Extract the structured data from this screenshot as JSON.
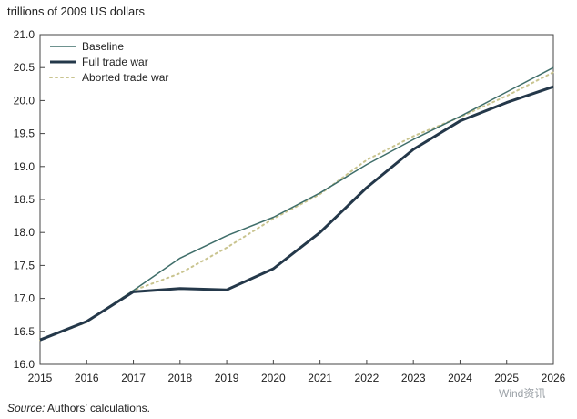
{
  "chart_data": {
    "type": "line",
    "ylabel": "trillions of 2009 US dollars",
    "x": [
      2015,
      2016,
      2017,
      2018,
      2019,
      2020,
      2021,
      2022,
      2023,
      2024,
      2025,
      2026
    ],
    "ylim": [
      16.0,
      21.0
    ],
    "yticks": [
      "16.0",
      "16.5",
      "17.0",
      "17.5",
      "18.0",
      "18.5",
      "19.0",
      "19.5",
      "20.0",
      "20.5",
      "21.0"
    ],
    "xticks": [
      "2015",
      "2016",
      "2017",
      "2018",
      "2019",
      "2020",
      "2021",
      "2022",
      "2023",
      "2024",
      "2025",
      "2026"
    ],
    "legend_position": "top-left",
    "grid": false,
    "series": [
      {
        "name": "Baseline",
        "color": "#3f6e6a",
        "style": "thin",
        "values": [
          16.37,
          16.65,
          17.12,
          17.61,
          17.95,
          18.23,
          18.6,
          19.03,
          19.41,
          19.76,
          20.13,
          20.5
        ]
      },
      {
        "name": "Full trade war",
        "color": "#24384a",
        "style": "thick",
        "values": [
          16.37,
          16.65,
          17.1,
          17.15,
          17.13,
          17.45,
          18.0,
          18.68,
          19.26,
          19.69,
          19.97,
          20.21
        ]
      },
      {
        "name": "Aborted trade war",
        "color": "#c9c48f",
        "style": "dotted",
        "values": [
          16.37,
          16.64,
          17.12,
          17.38,
          17.77,
          18.21,
          18.58,
          19.1,
          19.46,
          19.75,
          20.07,
          20.43
        ]
      }
    ]
  },
  "footer": {
    "source_label": "Source:",
    "source_text": " Authors’ calculations."
  },
  "watermark": {
    "text": "Wind资讯"
  }
}
